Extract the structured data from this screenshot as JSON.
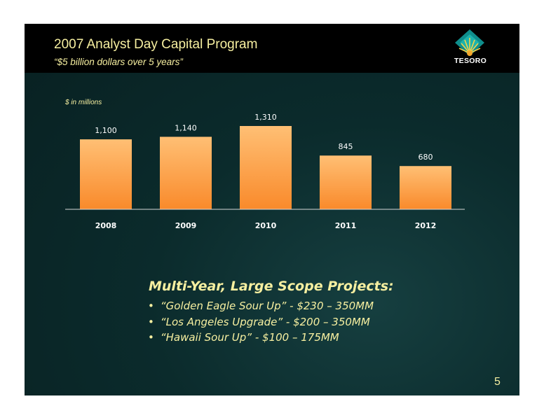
{
  "slide": {
    "title": "2007 Analyst Day Capital Program",
    "subtitle": "“$5 billion dollars over 5 years”",
    "logo_text": "TESORO",
    "page_number": "5",
    "units_label": "$ in millions"
  },
  "projects": {
    "heading": "Multi-Year, Large Scope Projects:",
    "items": [
      "“Golden Eagle Sour Up” - $230 – 350MM",
      "“Los Angeles Upgrade” - $200 – 350MM",
      "“Hawaii Sour Up” - $100 – 175MM"
    ]
  },
  "colors": {
    "background": "#0b2b2c",
    "header": "#000000",
    "text": "#f6efa0",
    "bar_top": "#ffbf74",
    "bar_bottom": "#f98a2b"
  },
  "chart_data": {
    "type": "bar",
    "categories": [
      "2008",
      "2009",
      "2010",
      "2011",
      "2012"
    ],
    "values": [
      1100,
      1140,
      1310,
      845,
      680
    ],
    "value_labels": [
      "1,100",
      "1,140",
      "1,310",
      "845",
      "680"
    ],
    "title": "",
    "xlabel": "",
    "ylabel": "$ in millions",
    "ylim": [
      0,
      1310
    ],
    "grid": false,
    "legend": "none"
  }
}
